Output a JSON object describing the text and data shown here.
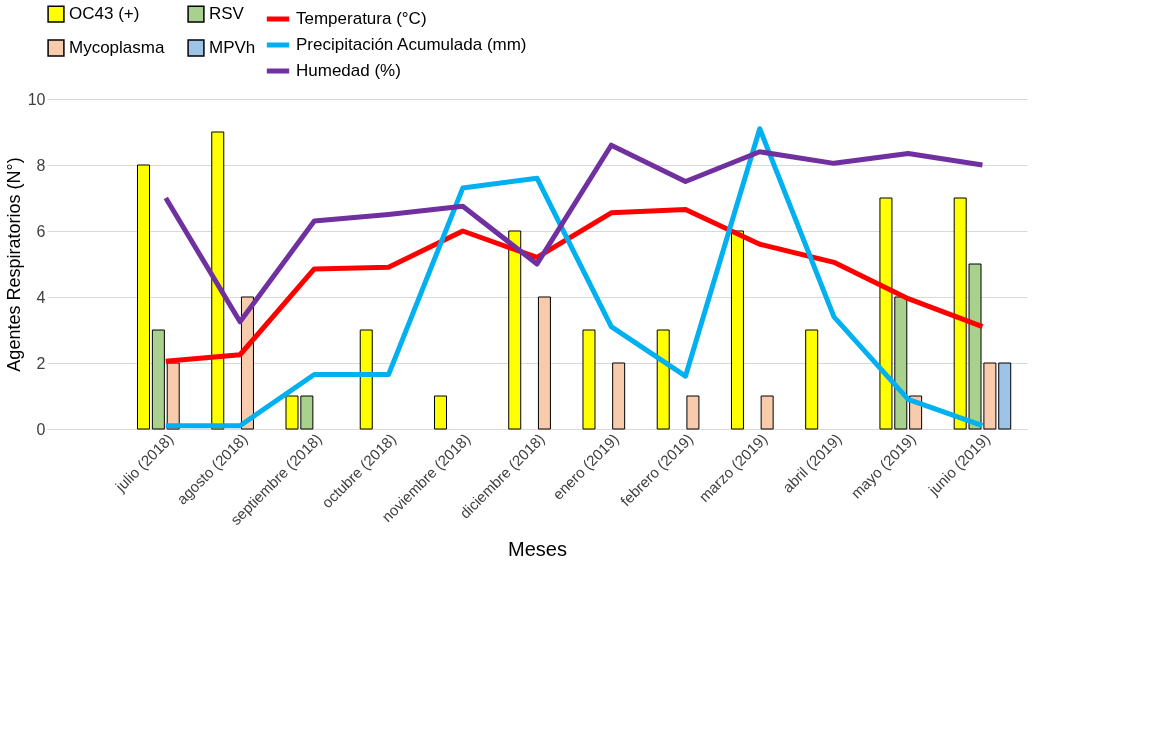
{
  "chart_data": {
    "type": "bar",
    "xlabel": "Meses",
    "ylabel": "Agentes Respiratorios (N°)",
    "categories": [
      null,
      "julio (2018)",
      "agosto (2018)",
      "septiembre (2018)",
      "octubre (2018)",
      "noviembre (2018)",
      "diciembre (2018)",
      "enero (2019)",
      "febrero (2019)",
      "marzo (2019)",
      "abril (2019)",
      "mayo (2019)",
      "junio (2019)"
    ],
    "series": [
      {
        "name": "OC43 (+)",
        "color": "#ffff00",
        "values": [
          null,
          8,
          9,
          1,
          3,
          1,
          6,
          3,
          3,
          6,
          3,
          7,
          7
        ]
      },
      {
        "name": "RSV",
        "color": "#a9d18e",
        "values": [
          null,
          3,
          null,
          1,
          null,
          null,
          null,
          null,
          null,
          null,
          null,
          4,
          5
        ]
      },
      {
        "name": "Mycoplasma",
        "color": "#f8cbad",
        "values": [
          null,
          2,
          4,
          null,
          null,
          null,
          4,
          2,
          1,
          1,
          null,
          1,
          2
        ]
      },
      {
        "name": "MPVh",
        "color": "#9dc3e6",
        "values": [
          null,
          null,
          null,
          null,
          null,
          null,
          null,
          null,
          null,
          null,
          null,
          null,
          2
        ]
      },
      {
        "name": "Temperatura  (°C)",
        "type": "line",
        "color": "#ff0000",
        "values": [
          null,
          2.05,
          2.25,
          4.85,
          4.9,
          6.0,
          5.2,
          6.55,
          6.65,
          5.6,
          5.05,
          3.95,
          3.1
        ]
      },
      {
        "name": "Precipitación Acumulada (mm)",
        "type": "line",
        "color": "#00b0f0",
        "values": [
          null,
          0.1,
          0.1,
          1.65,
          1.65,
          7.3,
          7.6,
          3.1,
          1.6,
          9.1,
          3.4,
          0.9,
          0.1
        ]
      },
      {
        "name": "Humedad (%)",
        "type": "line",
        "color": "#7030a0",
        "values": [
          null,
          7.0,
          3.25,
          6.3,
          6.5,
          6.75,
          5.0,
          8.6,
          7.5,
          8.4,
          8.05,
          8.35,
          8.0
        ]
      }
    ],
    "ylim": [
      0,
      10
    ],
    "yticks": [
      0,
      2,
      4,
      6,
      8,
      10
    ],
    "grid": "y",
    "legend": "top"
  }
}
